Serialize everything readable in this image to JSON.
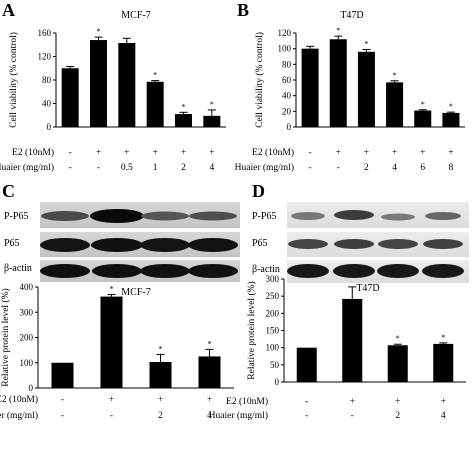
{
  "panel_letters": [
    "A",
    "B",
    "C",
    "D"
  ],
  "treatment_labels": {
    "e2": "E2 (10nM)",
    "huaier": "Huaier (mg/ml)"
  },
  "blot_labels": [
    "P-P65",
    "P65",
    "β-actin"
  ],
  "significance_mark": "*",
  "chart_data": [
    {
      "panel": "A",
      "type": "bar",
      "title": "MCF-7",
      "ylabel": "Cell viability (% control)",
      "ylim": [
        0,
        160
      ],
      "yticks": [
        0,
        40,
        80,
        120,
        160
      ],
      "categories": [
        "1",
        "2",
        "3",
        "4",
        "5",
        "6"
      ],
      "e2": [
        "-",
        "+",
        "+",
        "+",
        "+",
        "+"
      ],
      "huaier": [
        "-",
        "-",
        "0.5",
        "1",
        "2",
        "4"
      ],
      "values": [
        100,
        148,
        143,
        77,
        22,
        19
      ],
      "errors": [
        3,
        5,
        8,
        2,
        3,
        10
      ],
      "marks": [
        "",
        "*",
        "",
        "*",
        "*",
        "*"
      ]
    },
    {
      "panel": "B",
      "type": "bar",
      "title": "T47D",
      "ylabel": "Cell viability (% control)",
      "ylim": [
        0,
        120
      ],
      "yticks": [
        0,
        20,
        40,
        60,
        80,
        100,
        120
      ],
      "categories": [
        "1",
        "2",
        "3",
        "4",
        "5",
        "6"
      ],
      "e2": [
        "-",
        "+",
        "+",
        "+",
        "+",
        "+"
      ],
      "huaier": [
        "-",
        "-",
        "2",
        "4",
        "6",
        "8"
      ],
      "values": [
        100,
        112,
        96,
        57,
        21,
        18
      ],
      "errors": [
        3,
        4,
        3,
        2,
        1,
        1
      ],
      "marks": [
        "",
        "*",
        "*",
        "*",
        "*",
        "*"
      ]
    },
    {
      "panel": "C",
      "type": "bar",
      "title": "MCF-7",
      "ylabel": "Relative protein level (%)",
      "ylim": [
        0,
        400
      ],
      "yticks": [
        0,
        100,
        200,
        300,
        400
      ],
      "categories": [
        "1",
        "2",
        "3",
        "4"
      ],
      "e2": [
        "-",
        "+",
        "+",
        "+"
      ],
      "huaier": [
        "-",
        "-",
        "2",
        "4"
      ],
      "values": [
        100,
        362,
        103,
        125
      ],
      "errors": [
        0,
        8,
        30,
        28
      ],
      "marks": [
        "",
        "*",
        "*",
        "*"
      ]
    },
    {
      "panel": "D",
      "type": "bar",
      "title": "T47D",
      "ylabel": "Relative protein level (%)",
      "ylim": [
        0,
        300
      ],
      "yticks": [
        0,
        50,
        100,
        150,
        200,
        250,
        300
      ],
      "categories": [
        "1",
        "2",
        "3",
        "4"
      ],
      "e2": [
        "-",
        "+",
        "+",
        "+"
      ],
      "huaier": [
        "-",
        "-",
        "2",
        "4"
      ],
      "values": [
        100,
        242,
        107,
        111
      ],
      "errors": [
        0,
        35,
        3,
        3
      ],
      "marks": [
        "",
        "*",
        "*",
        "*"
      ]
    }
  ]
}
